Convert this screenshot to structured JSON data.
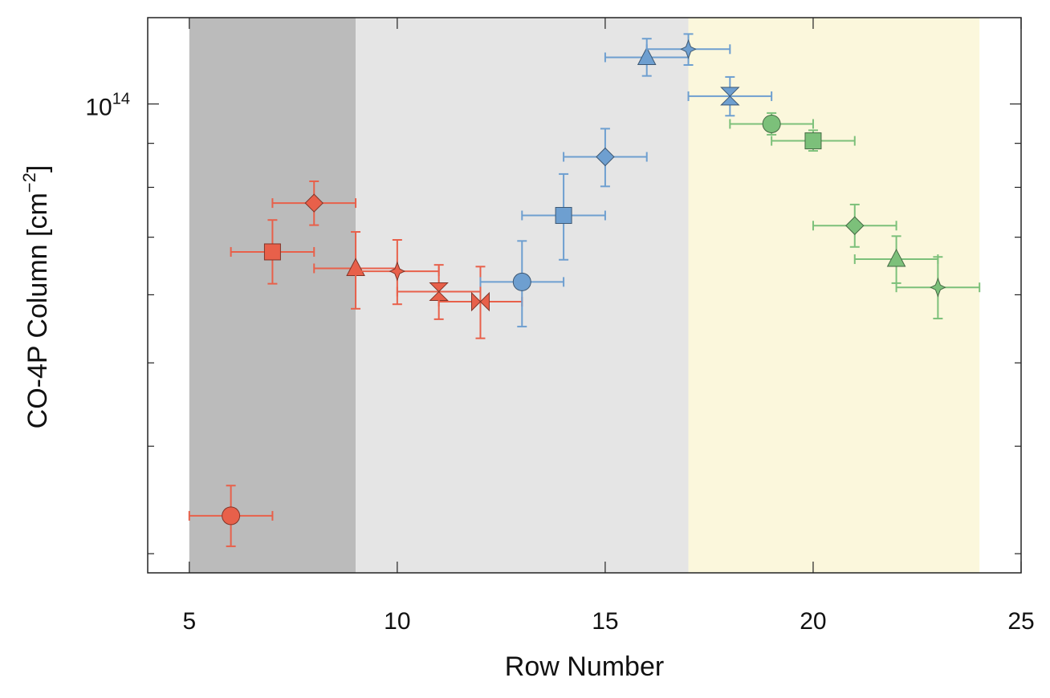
{
  "chart_data": {
    "type": "scatter",
    "xlabel": "Row Number",
    "ylabel": "CO-4P Column [cm",
    "ylabel_unit_exponent": "−2",
    "ylabel_close": "]",
    "xlim": [
      4,
      25
    ],
    "ylim": [
      28500000000000.0,
      126000000000000.0
    ],
    "yscale": "log",
    "xticks": [
      5,
      10,
      15,
      20,
      25
    ],
    "xtick_labels": [
      "5",
      "10",
      "15",
      "20",
      "25"
    ],
    "yticks_labeled": [
      {
        "value": 100000000000000.0,
        "base": "10",
        "exp": "14"
      }
    ],
    "yticks_minor": [
      30000000000000.0,
      40000000000000.0,
      50000000000000.0,
      60000000000000.0,
      70000000000000.0,
      80000000000000.0,
      90000000000000.0
    ],
    "grid": false,
    "shaded_regions": [
      {
        "x": [
          5,
          9
        ],
        "color": "#bbbbbb"
      },
      {
        "x": [
          9,
          17
        ],
        "color": "#e5e5e5"
      },
      {
        "x": [
          17,
          24
        ],
        "color": "#fbf7dc"
      }
    ],
    "series": [
      {
        "color": "#e8604a",
        "points": [
          {
            "x": 6,
            "y": 33200000000000.0,
            "xerr": 1,
            "yerr_lo": 30600000000000.0,
            "yerr_hi": 36000000000000.0,
            "marker": "circle"
          },
          {
            "x": 7,
            "y": 67300000000000.0,
            "xerr": 1,
            "yerr_lo": 61800000000000.0,
            "yerr_hi": 73300000000000.0,
            "marker": "square"
          },
          {
            "x": 8,
            "y": 76700000000000.0,
            "xerr": 1,
            "yerr_lo": 72300000000000.0,
            "yerr_hi": 81300000000000.0,
            "marker": "diamond"
          },
          {
            "x": 9,
            "y": 64400000000000.0,
            "xerr": 1,
            "yerr_lo": 57800000000000.0,
            "yerr_hi": 71000000000000.0,
            "marker": "triangle"
          },
          {
            "x": 10,
            "y": 63900000000000.0,
            "xerr": 1,
            "yerr_lo": 58500000000000.0,
            "yerr_hi": 69500000000000.0,
            "marker": "star4"
          },
          {
            "x": 11,
            "y": 60500000000000.0,
            "xerr": 1,
            "yerr_lo": 56200000000000.0,
            "yerr_hi": 65000000000000.0,
            "marker": "hourglass"
          },
          {
            "x": 12,
            "y": 58900000000000.0,
            "xerr": 1,
            "yerr_lo": 53400000000000.0,
            "yerr_hi": 64700000000000.0,
            "marker": "bowtie"
          }
        ]
      },
      {
        "color": "#6e9fd0",
        "points": [
          {
            "x": 13,
            "y": 62100000000000.0,
            "xerr": 1,
            "yerr_lo": 55100000000000.0,
            "yerr_hi": 69300000000000.0,
            "marker": "circle"
          },
          {
            "x": 14,
            "y": 74200000000000.0,
            "xerr": 1,
            "yerr_lo": 65900000000000.0,
            "yerr_hi": 82900000000000.0,
            "marker": "square"
          },
          {
            "x": 15,
            "y": 86800000000000.0,
            "xerr": 1,
            "yerr_lo": 80200000000000.0,
            "yerr_hi": 93600000000000.0,
            "marker": "diamond"
          },
          {
            "x": 16,
            "y": 113300000000000.0,
            "xerr": 1,
            "yerr_lo": 107800000000000.0,
            "yerr_hi": 119100000000000.0,
            "marker": "triangle"
          },
          {
            "x": 17,
            "y": 115800000000000.0,
            "xerr": 1,
            "yerr_lo": 111000000000000.0,
            "yerr_hi": 120600000000000.0,
            "marker": "star4"
          },
          {
            "x": 18,
            "y": 102100000000000.0,
            "xerr": 1,
            "yerr_lo": 96900000000000.0,
            "yerr_hi": 107500000000000.0,
            "marker": "hourglass"
          }
        ]
      },
      {
        "color": "#7cc07a",
        "points": [
          {
            "x": 19,
            "y": 94800000000000.0,
            "xerr": 1,
            "yerr_lo": 92100000000000.0,
            "yerr_hi": 97600000000000.0,
            "marker": "circle"
          },
          {
            "x": 20,
            "y": 90600000000000.0,
            "xerr": 1,
            "yerr_lo": 88200000000000.0,
            "yerr_hi": 93200000000000.0,
            "marker": "square"
          },
          {
            "x": 21,
            "y": 72200000000000.0,
            "xerr": 1,
            "yerr_lo": 68200000000000.0,
            "yerr_hi": 76400000000000.0,
            "marker": "diamond"
          },
          {
            "x": 22,
            "y": 66000000000000.0,
            "xerr": 1,
            "yerr_lo": 61900000000000.0,
            "yerr_hi": 70200000000000.0,
            "marker": "triangle"
          },
          {
            "x": 23,
            "y": 61200000000000.0,
            "xerr": 1,
            "yerr_lo": 56300000000000.0,
            "yerr_hi": 66400000000000.0,
            "marker": "star4"
          }
        ]
      }
    ]
  }
}
